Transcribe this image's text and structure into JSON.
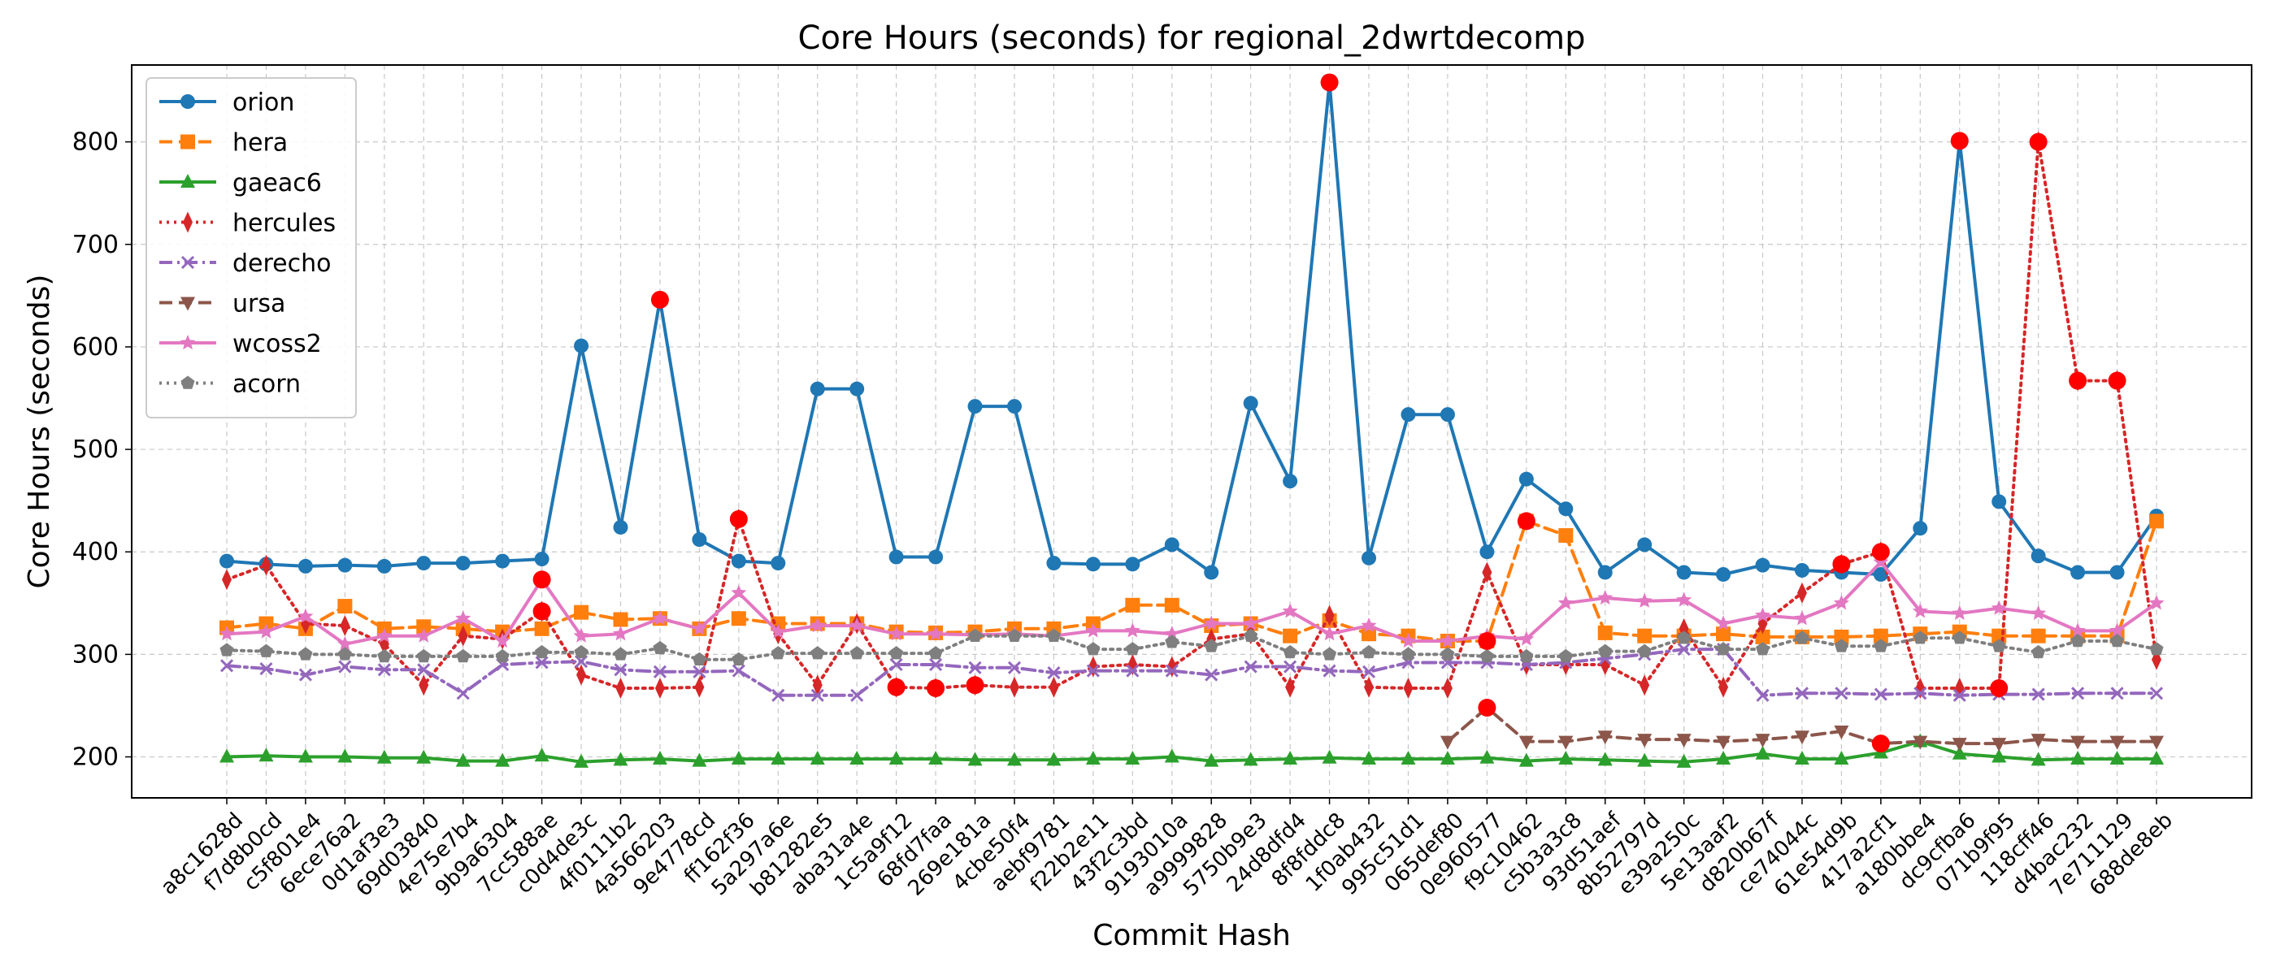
{
  "chart_data": {
    "type": "line",
    "title": "Core Hours (seconds) for regional_2dwrtdecomp",
    "xlabel": "Commit Hash",
    "ylabel": "Core Hours (seconds)",
    "ylim": [
      160,
      875
    ],
    "yticks": [
      200,
      300,
      400,
      500,
      600,
      700,
      800
    ],
    "grid": true,
    "legend_position": "top-left",
    "outlier_color": "#ff0000",
    "categories": [
      "a8c1628d",
      "f7d8b0cd",
      "c5f801e4",
      "6ece76a2",
      "0d1af3e3",
      "69d03840",
      "4e75e7b4",
      "9b9a6304",
      "7cc588ae",
      "c0d4de3c",
      "4f0111b2",
      "4a566203",
      "9e4778cd",
      "ff162f36",
      "5a297a6e",
      "b81282e5",
      "aba31a4e",
      "1c5a9f12",
      "68fd7faa",
      "269e181a",
      "4cbe50f4",
      "aebf9781",
      "f22b2e11",
      "43f2c3bd",
      "9193010a",
      "a9999828",
      "5750b9e3",
      "24d8dfd4",
      "8f8fddc8",
      "1f0ab432",
      "995c51d1",
      "065def80",
      "0e960577",
      "f9c10462",
      "c5b3a3c8",
      "93d51aef",
      "8b52797d",
      "e39a250c",
      "5e13aaf2",
      "d820b67f",
      "ce74044c",
      "61e54d9b",
      "417a2cf1",
      "a180bbe4",
      "dc9cfba6",
      "071b9f95",
      "118cff46",
      "d4bac232",
      "7e711129",
      "688de8eb"
    ],
    "series": [
      {
        "name": "orion",
        "color": "#1f77b4",
        "marker": "circle",
        "dash": "solid",
        "values": [
          391,
          388,
          386,
          387,
          386,
          389,
          389,
          391,
          393,
          601,
          424,
          646,
          412,
          391,
          389,
          559,
          559,
          395,
          395,
          542,
          542,
          389,
          388,
          388,
          407,
          380,
          545,
          469,
          858,
          394,
          534,
          534,
          400,
          471,
          442,
          380,
          407,
          380,
          378,
          387,
          382,
          380,
          378,
          423,
          801,
          449,
          396,
          380,
          380,
          435
        ],
        "outliers": [
          11,
          28,
          44
        ]
      },
      {
        "name": "hera",
        "color": "#ff7f0e",
        "marker": "square",
        "dash": "dashed",
        "values": [
          326,
          330,
          325,
          347,
          325,
          327,
          325,
          322,
          325,
          341,
          334,
          335,
          325,
          335,
          330,
          330,
          330,
          322,
          321,
          322,
          325,
          325,
          330,
          348,
          348,
          328,
          330,
          318,
          333,
          320,
          318,
          313,
          313,
          430,
          416,
          321,
          318,
          318,
          320,
          317,
          317,
          317,
          318,
          320,
          322,
          318,
          318,
          318,
          318,
          430
        ],
        "outliers": [
          32,
          33
        ]
      },
      {
        "name": "gaeac6",
        "color": "#2ca02c",
        "marker": "triangle-up",
        "dash": "solid",
        "values": [
          200,
          201,
          200,
          200,
          199,
          199,
          196,
          196,
          201,
          195,
          197,
          198,
          196,
          198,
          198,
          198,
          198,
          198,
          198,
          197,
          197,
          197,
          198,
          198,
          200,
          196,
          197,
          198,
          199,
          198,
          198,
          198,
          199,
          196,
          198,
          197,
          196,
          195,
          198,
          203,
          198,
          198,
          204,
          215,
          203,
          200,
          197,
          198,
          198,
          198
        ],
        "outliers": []
      },
      {
        "name": "hercules",
        "color": "#d62728",
        "marker": "thin-diamond",
        "dash": "dotted",
        "values": [
          373,
          387,
          330,
          328,
          310,
          270,
          318,
          315,
          342,
          280,
          267,
          267,
          268,
          432,
          320,
          270,
          330,
          268,
          267,
          270,
          268,
          268,
          288,
          290,
          288,
          315,
          320,
          268,
          338,
          268,
          267,
          267,
          380,
          290,
          290,
          290,
          270,
          325,
          268,
          330,
          360,
          388,
          400,
          267,
          267,
          267,
          800,
          567,
          567,
          295
        ],
        "outliers": [
          8,
          13,
          17,
          18,
          19,
          41,
          42,
          45,
          46,
          47,
          48
        ]
      },
      {
        "name": "derecho",
        "color": "#9467bd",
        "marker": "x",
        "dash": "dashdot",
        "values": [
          289,
          286,
          280,
          288,
          285,
          285,
          262,
          290,
          292,
          293,
          285,
          283,
          283,
          284,
          260,
          260,
          260,
          290,
          290,
          287,
          287,
          282,
          284,
          284,
          284,
          280,
          288,
          288,
          284,
          283,
          292,
          292,
          292,
          290,
          292,
          296,
          300,
          305,
          305,
          260,
          262,
          262,
          261,
          262,
          260,
          261,
          261,
          262,
          262,
          262
        ],
        "outliers": []
      },
      {
        "name": "ursa",
        "color": "#8c564b",
        "marker": "triangle-down",
        "dash": "dashed",
        "values": [
          null,
          null,
          null,
          null,
          null,
          null,
          null,
          null,
          null,
          null,
          null,
          null,
          null,
          null,
          null,
          null,
          null,
          null,
          null,
          null,
          null,
          null,
          null,
          null,
          null,
          null,
          null,
          null,
          null,
          null,
          null,
          215,
          248,
          215,
          215,
          220,
          217,
          217,
          215,
          217,
          220,
          225,
          213,
          215,
          213,
          213,
          217,
          215,
          215,
          215
        ],
        "outliers": [
          32,
          42
        ]
      },
      {
        "name": "wcoss2",
        "color": "#e377c2",
        "marker": "star",
        "dash": "solid",
        "values": [
          320,
          322,
          337,
          310,
          318,
          318,
          335,
          313,
          373,
          318,
          320,
          335,
          325,
          360,
          322,
          328,
          328,
          320,
          320,
          319,
          320,
          318,
          323,
          323,
          320,
          330,
          330,
          342,
          320,
          328,
          313,
          313,
          318,
          315,
          350,
          355,
          352,
          353,
          330,
          338,
          335,
          350,
          390,
          342,
          340,
          345,
          340,
          323,
          323,
          350
        ],
        "outliers": [
          8
        ]
      },
      {
        "name": "acorn",
        "color": "#7f7f7f",
        "marker": "pentagon",
        "dash": "dotted",
        "values": [
          304,
          303,
          300,
          300,
          298,
          298,
          298,
          298,
          302,
          302,
          300,
          306,
          295,
          295,
          301,
          301,
          301,
          301,
          301,
          318,
          318,
          318,
          305,
          305,
          312,
          308,
          318,
          302,
          300,
          302,
          300,
          300,
          298,
          298,
          298,
          303,
          303,
          316,
          305,
          305,
          316,
          308,
          308,
          316,
          316,
          308,
          302,
          313,
          313,
          305
        ],
        "outliers": []
      }
    ]
  }
}
